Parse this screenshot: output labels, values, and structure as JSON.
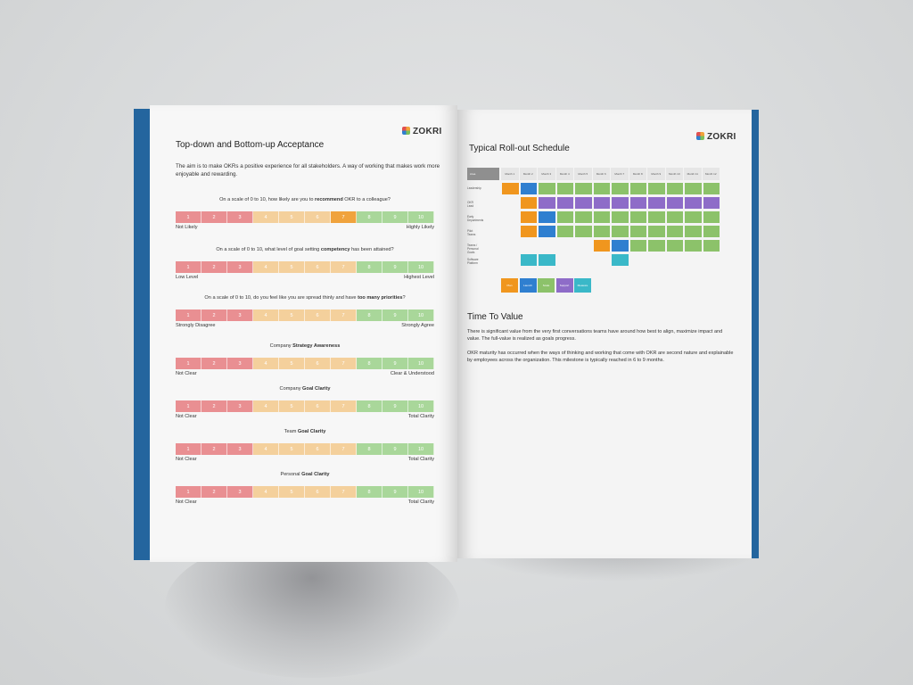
{
  "left_page": {
    "logo": "ZOKRI",
    "title": "Top-down and Bottom-up Acceptance",
    "intro": "The aim is to make OKRs a positive experience for all stakeholders. A way of working that makes work more enjoyable and rewarding.",
    "scale_numbers": [
      "1",
      "2",
      "3",
      "4",
      "5",
      "6",
      "7",
      "8",
      "9",
      "10"
    ],
    "questions": [
      {
        "pre": "On a scale of 0 to 10, how likely are you to ",
        "bold": "recommend",
        "post": " OKR to a colleague?",
        "left": "Not Likely",
        "right": "Highly Likely",
        "highlight": 7
      },
      {
        "pre": "On a scale of 0 to 10, what level of goal setting ",
        "bold": "competency",
        "post": " has been attained?",
        "left": "Low Level",
        "right": "Highest Level",
        "highlight": 0
      },
      {
        "pre": "On a scale of 0 to 10, do you feel like you are spread thinly and have ",
        "bold": "too many priorities",
        "post": "?",
        "left": "Strongly Disagree",
        "right": "Strongly Agree",
        "highlight": 0
      },
      {
        "pre": "Company ",
        "bold": "Strategy Awareness",
        "post": "",
        "left": "Not Clear",
        "right": "Clear & Understood",
        "highlight": 0
      },
      {
        "pre": "Company ",
        "bold": "Goal Clarity",
        "post": "",
        "left": "Not Clear",
        "right": "Total Clarity",
        "highlight": 0
      },
      {
        "pre": "Team ",
        "bold": "Goal Clarity",
        "post": "",
        "left": "Not Clear",
        "right": "Total Clarity",
        "highlight": 0
      },
      {
        "pre": "Personal ",
        "bold": "Goal Clarity",
        "post": "",
        "left": "Not Clear",
        "right": "Total Clarity",
        "highlight": 0
      }
    ]
  },
  "right_page": {
    "logo": "ZOKRI",
    "title": "Typical Roll-out Schedule",
    "schedule_header": [
      "Area",
      "Month 1",
      "Month 2",
      "Month 3",
      "Month 4",
      "Month 5",
      "Month 6",
      "Month 7",
      "Month 8",
      "Month 9",
      "Month 10",
      "Month 11",
      "Month 12"
    ],
    "schedule_rows": [
      "Leadership",
      "OKR Lead",
      "Early Departments",
      "Pilot Teams",
      "Teams / Personal Goals",
      "Software Platform"
    ],
    "legend": [
      "Plan",
      "Launch",
      "Scale",
      "Support",
      "Measure"
    ],
    "colors": {
      "orange": "#f0961e",
      "blue": "#2f7fd0",
      "green": "#8cc26a",
      "purple": "#8e6cc8",
      "teal": "#3ab8c8"
    },
    "section_title": "Time To Value",
    "para1": "There is significant value from the very first conversations teams have around how best to align, maximize impact and value. The full-value is realized as goals progress.",
    "para2": "OKR maturity has occurred when the ways of thinking and working that come with OKR are second nature and explainable by employees across the organization. This milestone is typically reached in 6 to 9 months."
  }
}
